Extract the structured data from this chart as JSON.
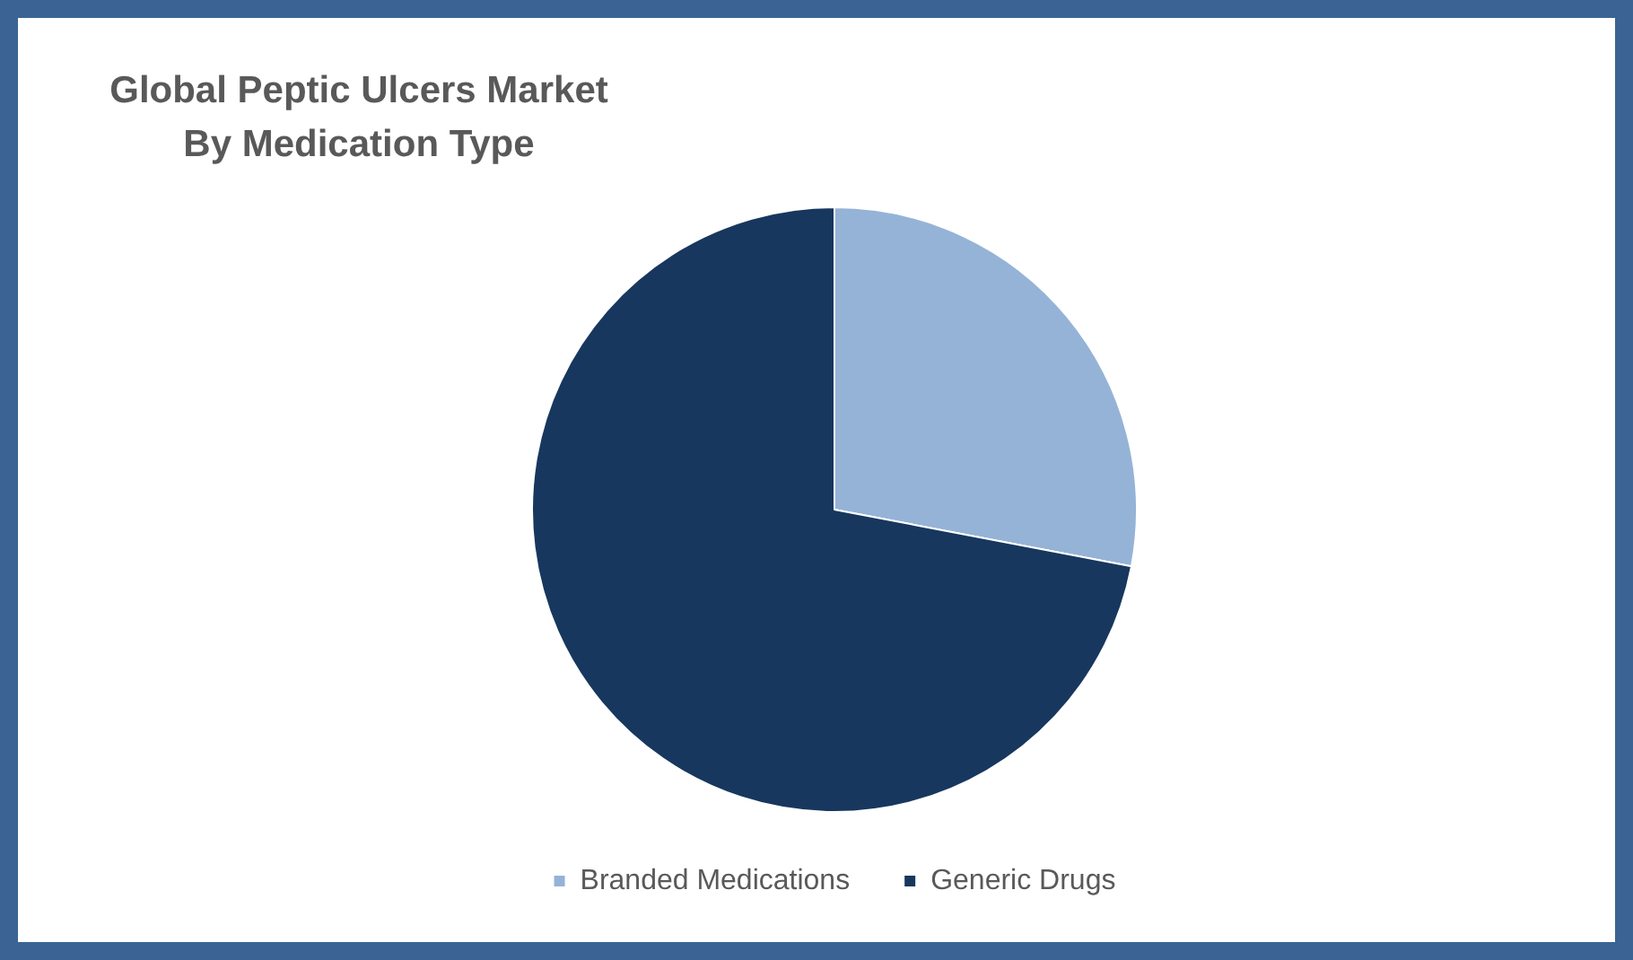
{
  "chart_data": {
    "type": "pie",
    "title": "Global Peptic Ulcers Market\nBy Medication Type",
    "categories": [
      "Branded Medications",
      "Generic Drugs"
    ],
    "values": [
      28,
      72
    ],
    "colors": [
      "#95b3d7",
      "#17375e"
    ],
    "legend": "bottom"
  }
}
